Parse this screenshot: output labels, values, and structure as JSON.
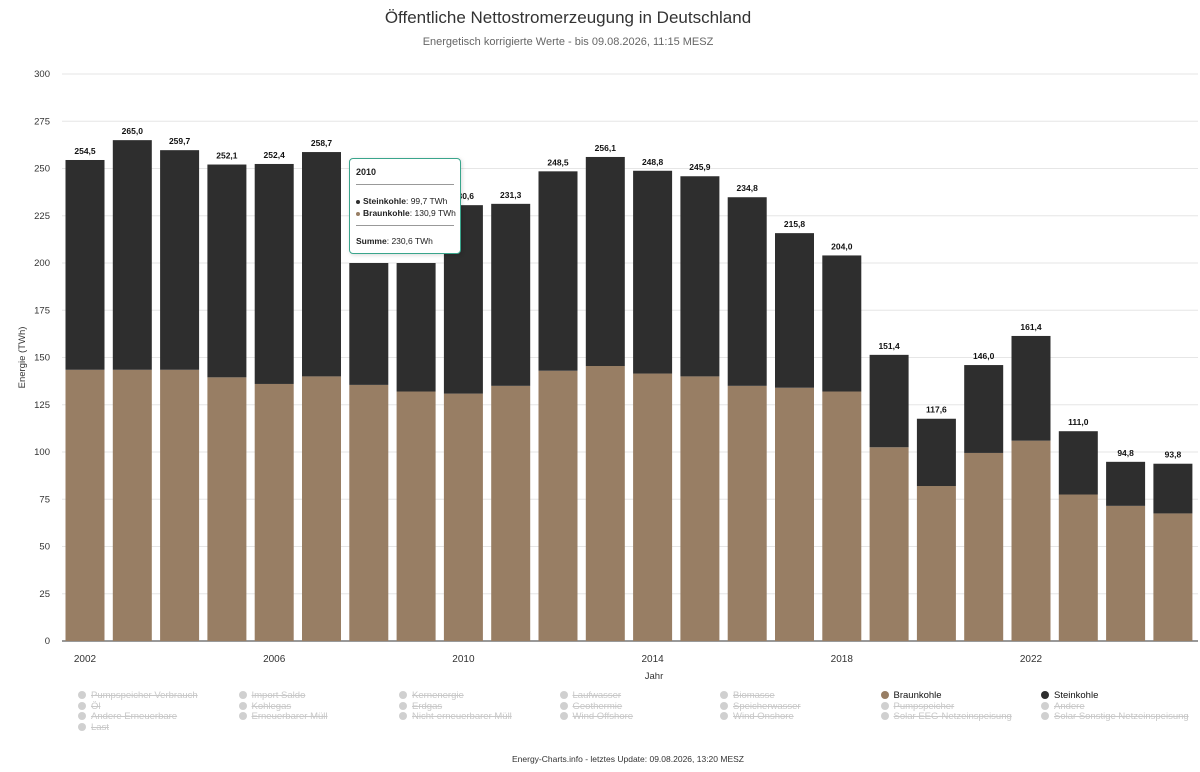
{
  "header": {
    "title": "Öffentliche Nettostromerzeugung in Deutschland",
    "subtitle": "Energetisch korrigierte Werte - bis 09.08.2026, 11:15 MESZ"
  },
  "footer": {
    "text": "Energy-Charts.info - letztes Update: 09.08.2026, 13:20 MESZ"
  },
  "colors": {
    "braunkohle": "#987e64",
    "steinkohle": "#2e2e2e",
    "tooltip_border": "#3aa58c"
  },
  "tooltip": {
    "year": "2010",
    "rows": [
      {
        "name": "Steinkohle",
        "value": ": 99,7 TWh",
        "color": "#2e2e2e"
      },
      {
        "name": "Braunkohle",
        "value": ": 130,9 TWh",
        "color": "#987e64"
      }
    ],
    "sum_label": "Summe",
    "sum_value": ": 230,6 TWh"
  },
  "legend": {
    "items": [
      {
        "label": "Pumpspeicher Verbrauch",
        "active": false
      },
      {
        "label": "Import Saldo",
        "active": false
      },
      {
        "label": "Kernenergie",
        "active": false
      },
      {
        "label": "Laufwasser",
        "active": false
      },
      {
        "label": "Biomasse",
        "active": false
      },
      {
        "label": "Braunkohle",
        "active": true,
        "color": "#987e64"
      },
      {
        "label": "Steinkohle",
        "active": true,
        "color": "#2e2e2e"
      },
      {
        "label": "Öl",
        "active": false
      },
      {
        "label": "Kohlegas",
        "active": false
      },
      {
        "label": "Erdgas",
        "active": false
      },
      {
        "label": "Geothermie",
        "active": false
      },
      {
        "label": "Speicherwasser",
        "active": false
      },
      {
        "label": "Pumpspeicher",
        "active": false
      },
      {
        "label": "Andere",
        "active": false
      },
      {
        "label": "Andere Erneuerbare",
        "active": false
      },
      {
        "label": "Erneuerbarer Müll",
        "active": false
      },
      {
        "label": "Nicht-erneuerbarer Müll",
        "active": false
      },
      {
        "label": "Wind Offshore",
        "active": false
      },
      {
        "label": "Wind Onshore",
        "active": false
      },
      {
        "label": "Solar EEG-Netzeinspeisung",
        "active": false
      },
      {
        "label": "Solar Sonstige Netzeinspeisung",
        "active": false
      },
      {
        "label": "Last",
        "active": false
      }
    ]
  },
  "chart_data": {
    "type": "bar",
    "stacked": true,
    "xlabel": "Jahr",
    "ylabel": "Energie (TWh)",
    "ylim": [
      0,
      300
    ],
    "yticks": [
      0,
      25,
      50,
      75,
      100,
      125,
      150,
      175,
      200,
      225,
      250,
      275,
      300
    ],
    "xtick_labels": [
      "2002",
      "2006",
      "2010",
      "2014",
      "2018",
      "2022"
    ],
    "categories": [
      "2002",
      "2003",
      "2004",
      "2005",
      "2006",
      "2007",
      "2008",
      "2009",
      "2010",
      "2011",
      "2012",
      "2013",
      "2014",
      "2015",
      "2016",
      "2017",
      "2018",
      "2019",
      "2020",
      "2021",
      "2022",
      "2023",
      "2024",
      "2025"
    ],
    "series": [
      {
        "name": "Braunkohle",
        "color": "#987e64",
        "values": [
          143.5,
          143.5,
          143.5,
          139.5,
          136.0,
          140.0,
          135.5,
          132.0,
          130.9,
          135.0,
          143.0,
          145.5,
          141.5,
          140.0,
          135.0,
          134.0,
          132.0,
          102.5,
          82.0,
          99.5,
          106.0,
          77.5,
          71.5,
          67.5
        ]
      },
      {
        "name": "Steinkohle",
        "color": "#2e2e2e",
        "values": [
          111.0,
          121.5,
          116.2,
          112.6,
          116.4,
          118.7,
          null,
          null,
          99.7,
          96.3,
          105.5,
          110.6,
          107.3,
          105.9,
          99.8,
          81.8,
          72.0,
          48.9,
          35.6,
          46.5,
          55.4,
          33.5,
          23.3,
          26.3
        ]
      }
    ],
    "totals": [
      254.5,
      265.0,
      259.7,
      252.1,
      252.4,
      258.7,
      null,
      null,
      230.6,
      231.3,
      248.5,
      256.1,
      248.8,
      245.9,
      234.8,
      215.8,
      204.0,
      151.4,
      117.6,
      146.0,
      161.4,
      111.0,
      94.8,
      93.8
    ],
    "total_labels": [
      "254,5",
      "265,0",
      "259,7",
      "252,1",
      "252,4",
      "258,7",
      "",
      "",
      "230,6",
      "231,3",
      "248,5",
      "256,1",
      "248,8",
      "245,9",
      "234,8",
      "215,8",
      "204,0",
      "151,4",
      "117,6",
      "146,0",
      "161,4",
      "111,0",
      "94,8",
      "93,8"
    ]
  }
}
